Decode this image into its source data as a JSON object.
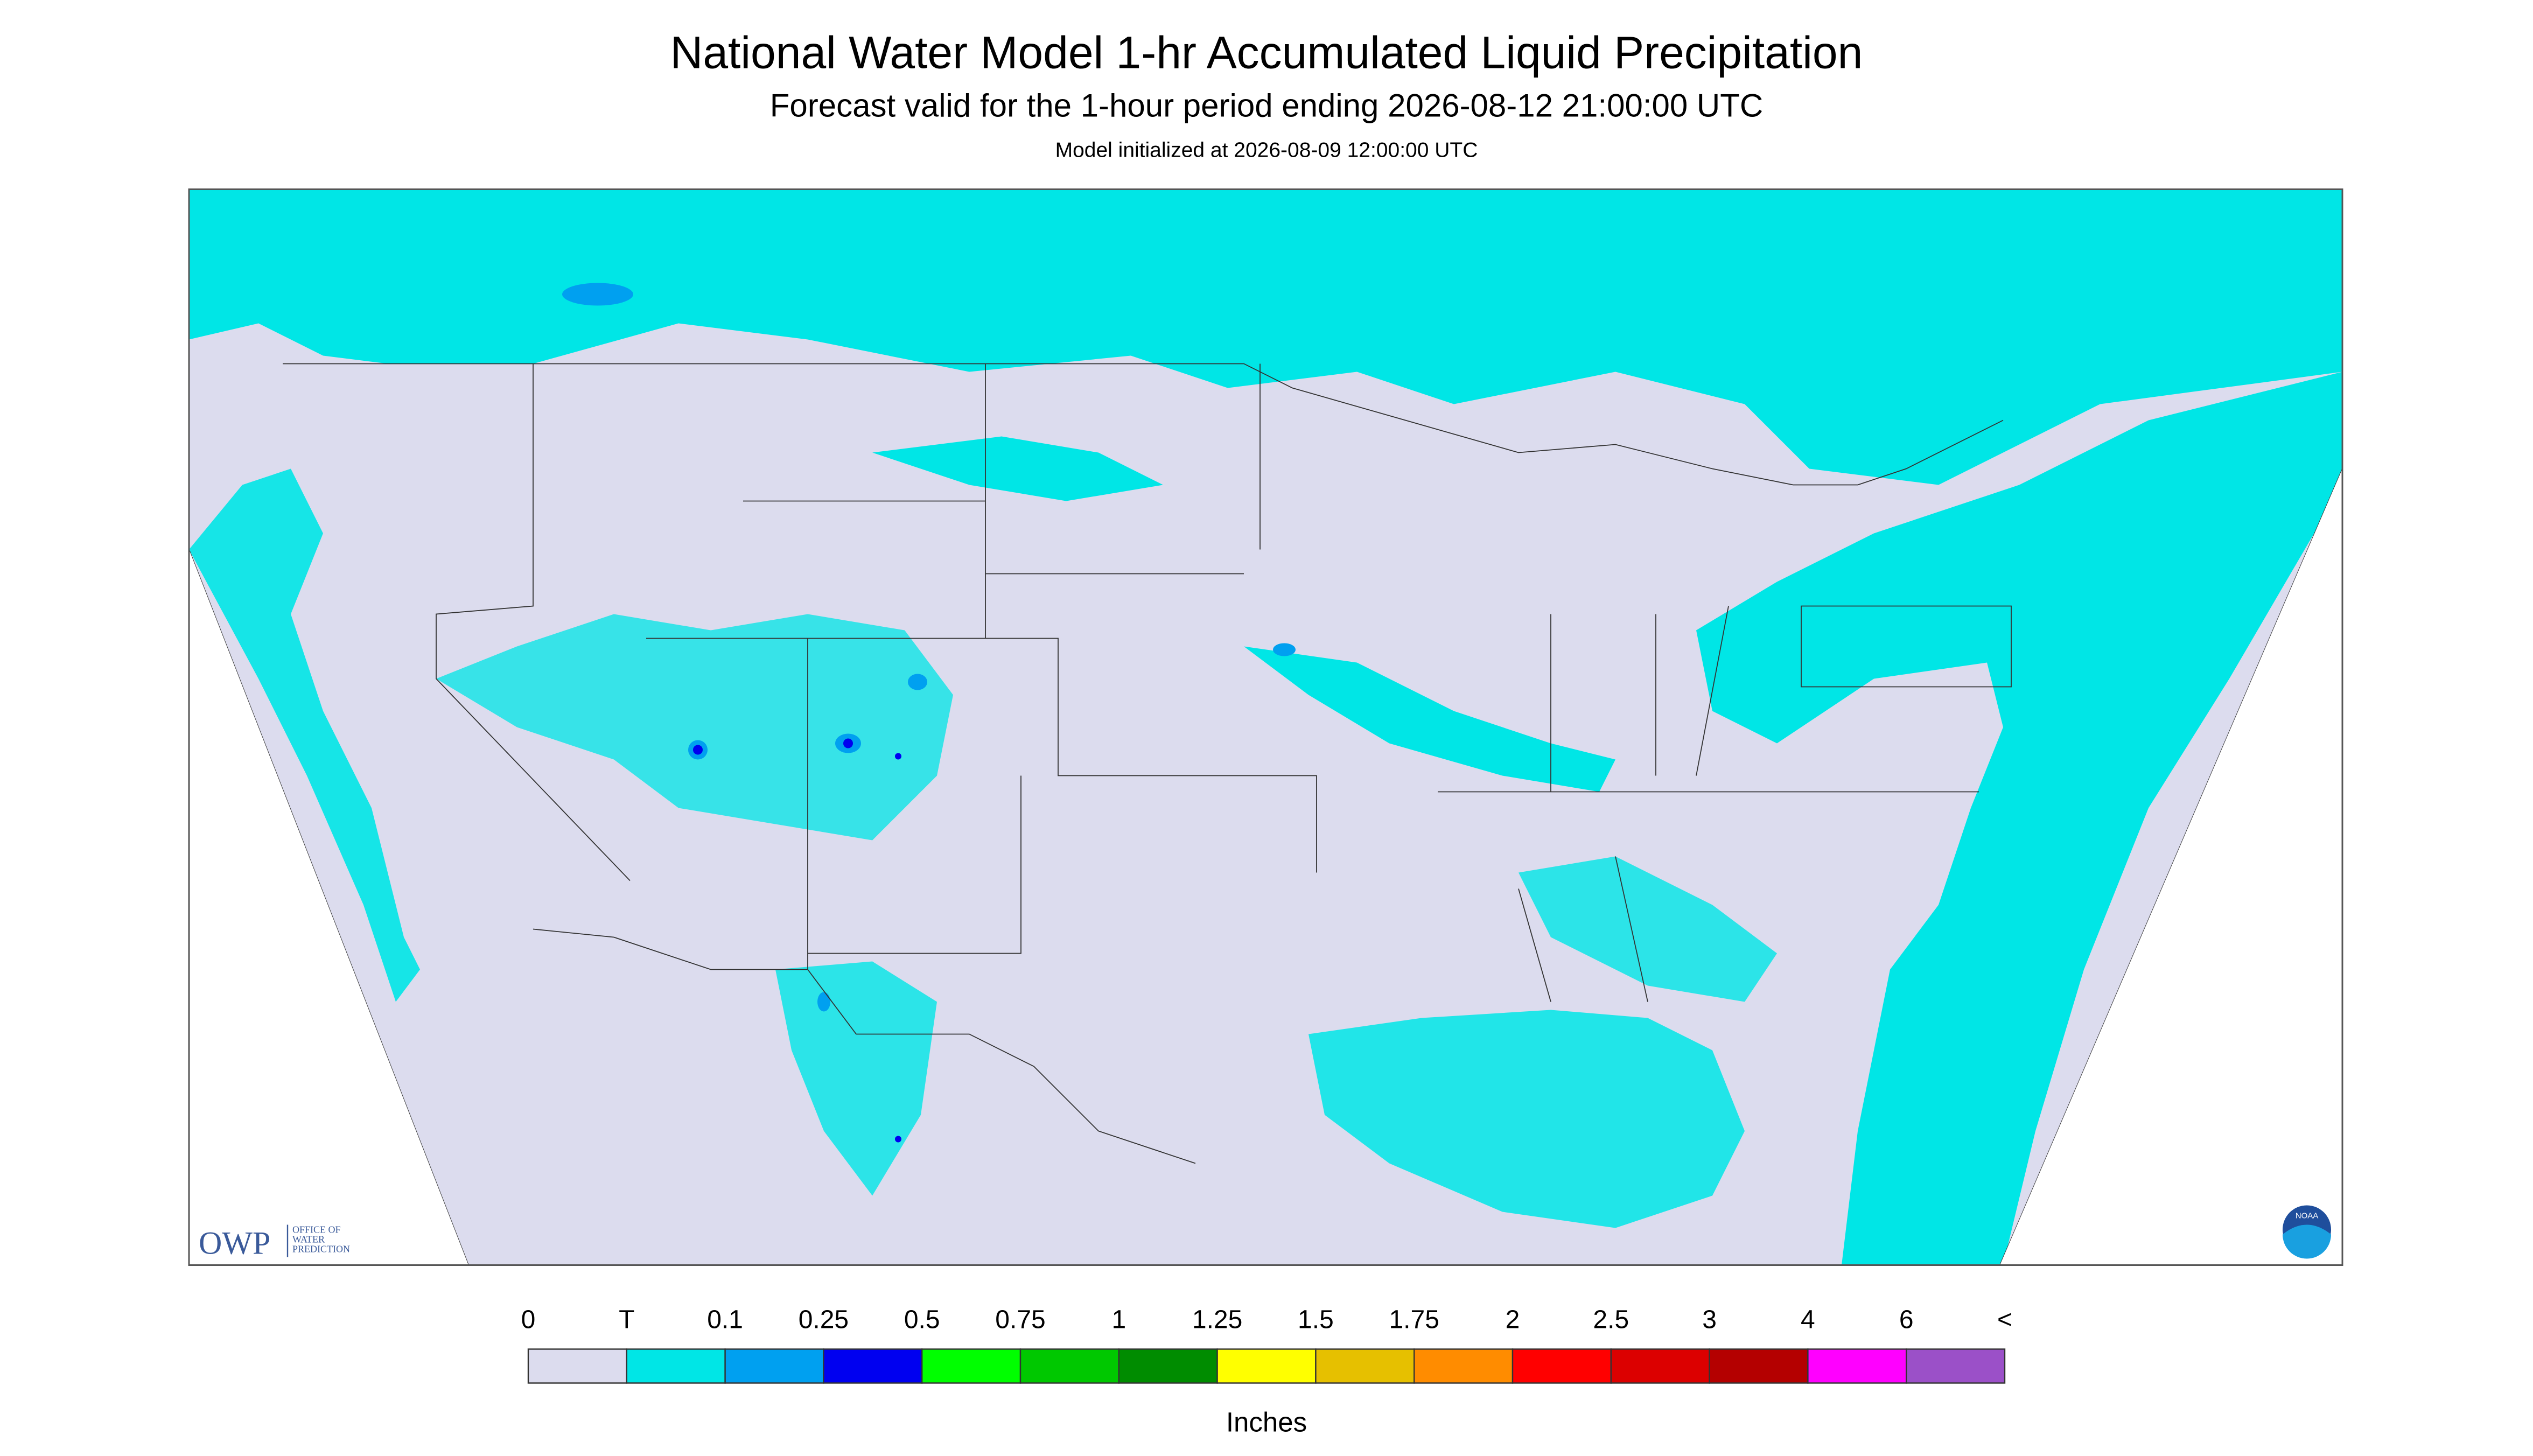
{
  "header": {
    "title": "National Water Model 1-hr Accumulated Liquid Precipitation",
    "subtitle": "Forecast valid for the 1-hour period ending 2026-08-12 21:00:00 UTC",
    "note": "Model initialized at 2026-08-09 12:00:00 UTC"
  },
  "logos": {
    "owp": "OWP",
    "owp_lines": [
      "OFFICE OF",
      "WATER",
      "PREDICTION"
    ],
    "noaa": "NOAA"
  },
  "legend": {
    "units": "Inches",
    "labels": [
      "0",
      "T",
      "0.1",
      "0.25",
      "0.5",
      "0.75",
      "1",
      "1.25",
      "1.5",
      "1.75",
      "2",
      "2.5",
      "3",
      "4",
      "6",
      "<"
    ],
    "colors": [
      "#dcdcee",
      "#00e6e6",
      "#00a0f0",
      "#0000f0",
      "#00ff00",
      "#00c800",
      "#008c00",
      "#ffff00",
      "#e6c000",
      "#ff8c00",
      "#ff0000",
      "#dc0000",
      "#b40000",
      "#ff00ff",
      "#9b50c8"
    ]
  }
}
